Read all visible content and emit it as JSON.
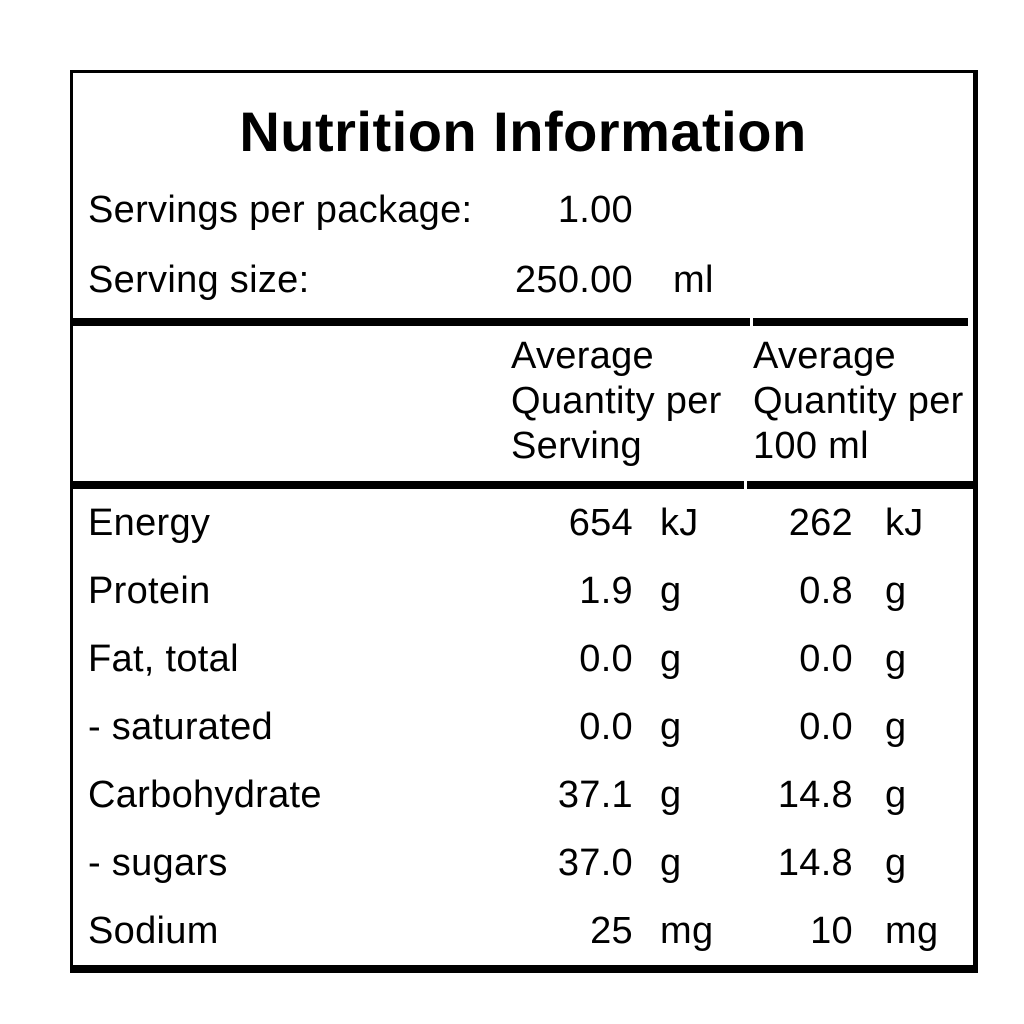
{
  "title": "Nutrition Information",
  "serving_info": [
    {
      "label": "Servings per package:",
      "value": "1.00",
      "unit": ""
    },
    {
      "label": "Serving size:",
      "value": "250.00",
      "unit": "ml"
    }
  ],
  "header": {
    "col2_lines": [
      "Average",
      "Quantity per",
      "Serving"
    ],
    "col3_lines": [
      "Average",
      "Quantity per",
      "100 ml"
    ]
  },
  "rows": [
    {
      "name": "Energy",
      "serving_value": "654",
      "serving_unit": "kJ",
      "per100_value": "262",
      "per100_unit": "kJ"
    },
    {
      "name": "Protein",
      "serving_value": "1.9",
      "serving_unit": "g",
      "per100_value": "0.8",
      "per100_unit": "g"
    },
    {
      "name": "Fat, total",
      "serving_value": "0.0",
      "serving_unit": "g",
      "per100_value": "0.0",
      "per100_unit": "g"
    },
    {
      "name": "- saturated",
      "serving_value": "0.0",
      "serving_unit": "g",
      "per100_value": "0.0",
      "per100_unit": "g"
    },
    {
      "name": "Carbohydrate",
      "serving_value": "37.1",
      "serving_unit": "g",
      "per100_value": "14.8",
      "per100_unit": "g"
    },
    {
      "name": "- sugars",
      "serving_value": "37.0",
      "serving_unit": "g",
      "per100_value": "14.8",
      "per100_unit": "g"
    },
    {
      "name": "Sodium",
      "serving_value": "25",
      "serving_unit": "mg",
      "per100_value": "10",
      "per100_unit": "mg"
    }
  ],
  "colors": {
    "background": "#ffffff",
    "text": "#000000",
    "border": "#000000"
  }
}
